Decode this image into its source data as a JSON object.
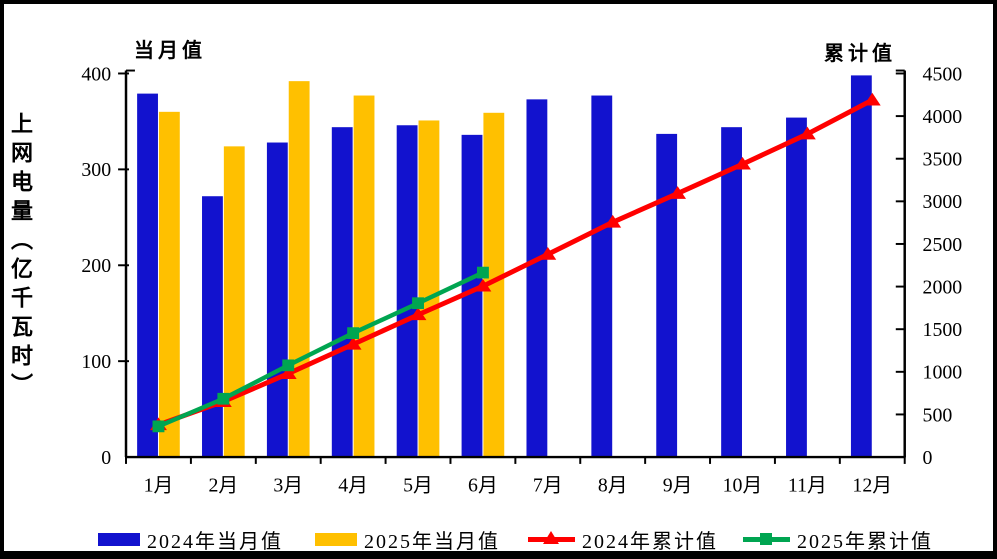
{
  "chart_data": {
    "type": "combo-bar-line",
    "title": "",
    "categories": [
      "1月",
      "2月",
      "3月",
      "4月",
      "5月",
      "6月",
      "7月",
      "8月",
      "9月",
      "10月",
      "11月",
      "12月"
    ],
    "grid": false,
    "legend_position": "bottom",
    "left_axis": {
      "header": "当月值",
      "title": "上网电量（亿千瓦时）",
      "min": 0,
      "max": 400,
      "ticks": [
        0,
        100,
        200,
        300,
        400
      ]
    },
    "right_axis": {
      "header": "累计值",
      "min": 0,
      "max": 4500,
      "ticks": [
        0,
        500,
        1000,
        1500,
        2000,
        2500,
        3000,
        3500,
        4000,
        4500
      ]
    },
    "series": [
      {
        "name": "2024年当月值",
        "type": "bar",
        "axis": "left",
        "color": "#1212CE",
        "values": [
          379,
          272,
          328,
          344,
          346,
          336,
          373,
          377,
          337,
          344,
          354,
          398
        ]
      },
      {
        "name": "2025年当月值",
        "type": "bar",
        "axis": "left",
        "color": "#FFC000",
        "values": [
          360,
          324,
          392,
          377,
          351,
          359
        ]
      },
      {
        "name": "2024年累计值",
        "type": "line",
        "axis": "right",
        "color": "#FF0000",
        "marker": "triangle",
        "values": [
          379,
          651,
          979,
          1323,
          1669,
          2005,
          2378,
          2755,
          3092,
          3436,
          3790,
          4188
        ]
      },
      {
        "name": "2025年累计值",
        "type": "line",
        "axis": "right",
        "color": "#00A551",
        "marker": "square",
        "values": [
          360,
          684,
          1076,
          1454,
          1805,
          2164
        ]
      }
    ]
  }
}
